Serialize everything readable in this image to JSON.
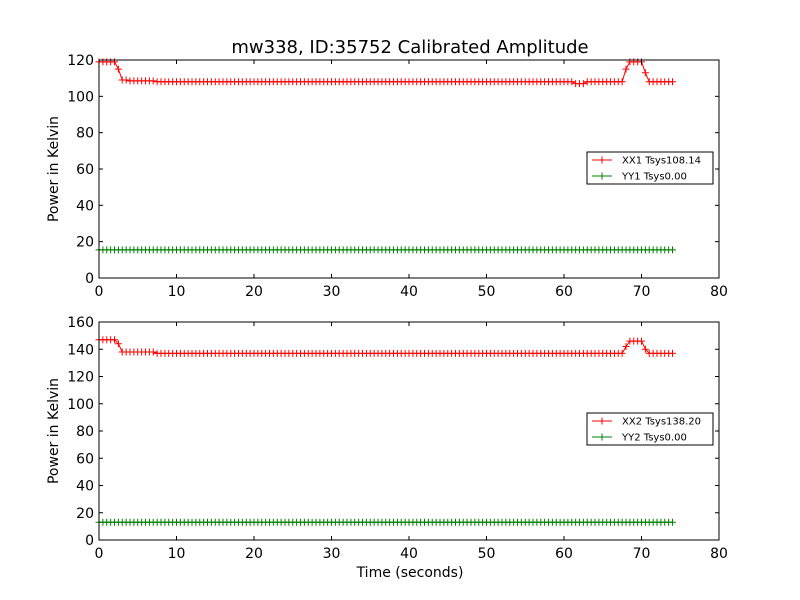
{
  "chart_data": [
    {
      "type": "line",
      "title": "mw338, ID:35752 Calibrated Amplitude",
      "xlabel": "",
      "ylabel": "Power in Kelvin",
      "xlim": [
        0,
        80
      ],
      "ylim": [
        0,
        120
      ],
      "xticks": [
        "0",
        "10",
        "20",
        "30",
        "40",
        "50",
        "60",
        "70",
        "80"
      ],
      "yticks": [
        "0",
        "20",
        "40",
        "60",
        "80",
        "100",
        "120"
      ],
      "grid": false,
      "legend_position": "center-right",
      "x_step": 0.5,
      "series": [
        {
          "name": "XX1 Tsys108.14",
          "color": "#ff0000",
          "marker": "plus",
          "segments": [
            {
              "from": 0,
              "to": 2,
              "value": 119
            },
            {
              "from": 2.5,
              "to": 2.5,
              "value": 115
            },
            {
              "from": 3,
              "to": 3.5,
              "value": 109
            },
            {
              "from": 4,
              "to": 7,
              "value": 108.5
            },
            {
              "from": 7.5,
              "to": 61,
              "value": 108
            },
            {
              "from": 61.5,
              "to": 62.5,
              "value": 107
            },
            {
              "from": 63,
              "to": 67.5,
              "value": 108
            },
            {
              "from": 68,
              "to": 68,
              "value": 115
            },
            {
              "from": 68.5,
              "to": 70,
              "value": 119
            },
            {
              "from": 70.5,
              "to": 70.5,
              "value": 113
            },
            {
              "from": 71,
              "to": 74,
              "value": 108
            }
          ]
        },
        {
          "name": "YY1 Tsys0.00",
          "color": "#008000",
          "marker": "plus",
          "segments": [
            {
              "from": 0,
              "to": 74,
              "value": 15.5
            }
          ]
        }
      ]
    },
    {
      "type": "line",
      "title": "",
      "xlabel": "Time (seconds)",
      "ylabel": "Power in Kelvin",
      "xlim": [
        0,
        80
      ],
      "ylim": [
        0,
        160
      ],
      "xticks": [
        "0",
        "10",
        "20",
        "30",
        "40",
        "50",
        "60",
        "70",
        "80"
      ],
      "yticks": [
        "0",
        "20",
        "40",
        "60",
        "80",
        "100",
        "120",
        "140",
        "160"
      ],
      "grid": false,
      "legend_position": "center-right",
      "x_step": 0.5,
      "series": [
        {
          "name": "XX2 Tsys138.20",
          "color": "#ff0000",
          "marker": "plus",
          "segments": [
            {
              "from": 0,
              "to": 2,
              "value": 147
            },
            {
              "from": 2.5,
              "to": 2.5,
              "value": 144
            },
            {
              "from": 3,
              "to": 7,
              "value": 138
            },
            {
              "from": 7.5,
              "to": 67.5,
              "value": 137
            },
            {
              "from": 68,
              "to": 68,
              "value": 142
            },
            {
              "from": 68.5,
              "to": 70,
              "value": 146
            },
            {
              "from": 70.5,
              "to": 70.5,
              "value": 140
            },
            {
              "from": 71,
              "to": 74,
              "value": 137
            }
          ]
        },
        {
          "name": "YY2 Tsys0.00",
          "color": "#008000",
          "marker": "plus",
          "segments": [
            {
              "from": 0,
              "to": 74,
              "value": 13
            }
          ]
        }
      ]
    }
  ]
}
